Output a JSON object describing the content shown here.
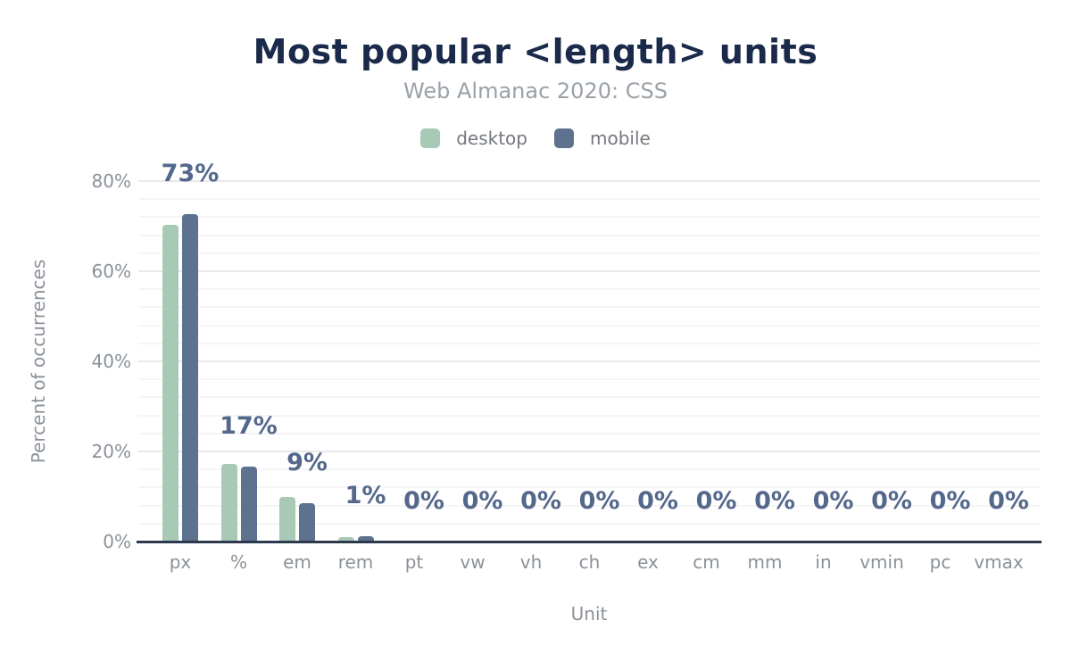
{
  "chart_data": {
    "type": "bar",
    "title": "Most popular <length> units",
    "subtitle": "Web Almanac 2020: CSS",
    "xlabel": "Unit",
    "ylabel": "Percent of occurrences",
    "categories": [
      "px",
      "%",
      "em",
      "rem",
      "pt",
      "vw",
      "vh",
      "ch",
      "ex",
      "cm",
      "mm",
      "in",
      "vmin",
      "pc",
      "vmax"
    ],
    "series": [
      {
        "name": "desktop",
        "color": "#a7c9b5",
        "values": [
          70.3,
          17.2,
          9.9,
          1.0,
          0,
          0,
          0,
          0,
          0,
          0,
          0,
          0,
          0,
          0,
          0
        ]
      },
      {
        "name": "mobile",
        "color": "#5e718e",
        "values": [
          72.6,
          16.6,
          8.5,
          1.2,
          0,
          0,
          0,
          0,
          0,
          0,
          0,
          0,
          0,
          0,
          0
        ]
      }
    ],
    "bar_labels": [
      "73%",
      "17%",
      "9%",
      "1%",
      "0%",
      "0%",
      "0%",
      "0%",
      "0%",
      "0%",
      "0%",
      "0%",
      "0%",
      "0%",
      "0%"
    ],
    "ylim": [
      0,
      80
    ],
    "yticks": [
      "0%",
      "20%",
      "40%",
      "60%",
      "80%"
    ],
    "ytick_values": [
      0,
      20,
      40,
      60,
      80
    ],
    "minor_grid_step": 4,
    "grid": true,
    "legend_position": "top",
    "colors": {
      "title": "#1b2a4a",
      "subtitle": "#9aa1a8",
      "data_label": "#54688c",
      "tick_label": "#8b9199",
      "axis_line": "#2e3950"
    }
  }
}
